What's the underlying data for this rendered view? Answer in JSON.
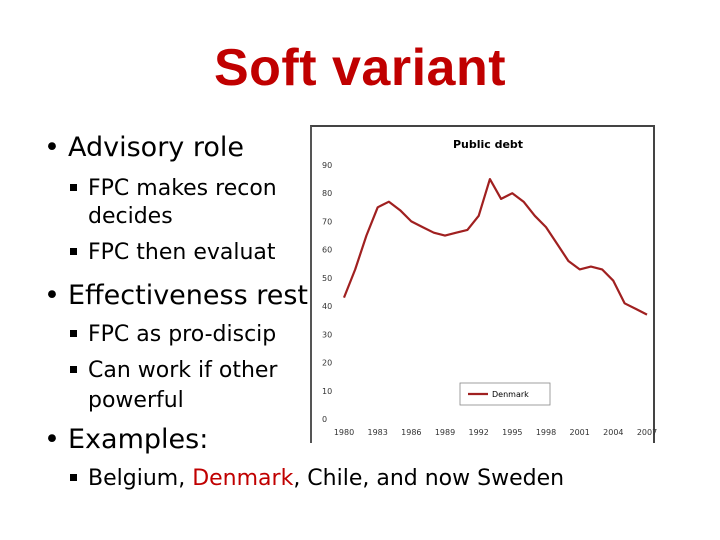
{
  "slide": {
    "title": "Soft variant",
    "bullets": [
      {
        "text": "Advisory role",
        "subs": [
          {
            "line1": "FPC makes recon",
            "line2": "decides"
          },
          {
            "line1": "FPC then evaluat"
          }
        ]
      },
      {
        "text": "Effectiveness rest",
        "subs": [
          {
            "line1": "FPC as pro-discip"
          },
          {
            "line1": "Can work if other",
            "line2": "powerful"
          }
        ]
      },
      {
        "text": "Examples:",
        "subs": [
          {
            "pre": "Belgium, ",
            "highlight": "Denmark",
            "post": ", Chile, and now Sweden"
          }
        ]
      }
    ]
  },
  "colors": {
    "title": "#c00000",
    "series": "#a02020"
  },
  "chart_data": {
    "type": "line",
    "title": "Public debt",
    "x_ticks": [
      "1980",
      "1983",
      "1986",
      "1989",
      "1992",
      "1995",
      "1998",
      "2001",
      "2004",
      "2007"
    ],
    "y_ticks": [
      "0",
      "10",
      "20",
      "30",
      "40",
      "50",
      "60",
      "70",
      "80",
      "90"
    ],
    "ylim": [
      0,
      90
    ],
    "xlim": [
      1980,
      2007
    ],
    "legend": "Denmark",
    "legend_position": "bottom-right",
    "series": [
      {
        "name": "Denmark",
        "x": [
          1980,
          1981,
          1982,
          1983,
          1984,
          1985,
          1986,
          1987,
          1988,
          1989,
          1990,
          1991,
          1992,
          1993,
          1994,
          1995,
          1996,
          1997,
          1998,
          1999,
          2000,
          2001,
          2002,
          2003,
          2004,
          2005,
          2006,
          2007
        ],
        "values": [
          43,
          53,
          65,
          75,
          77,
          74,
          70,
          68,
          66,
          65,
          66,
          67,
          72,
          85,
          78,
          80,
          77,
          72,
          68,
          62,
          56,
          53,
          54,
          53,
          49,
          41,
          39,
          37
        ]
      }
    ]
  }
}
